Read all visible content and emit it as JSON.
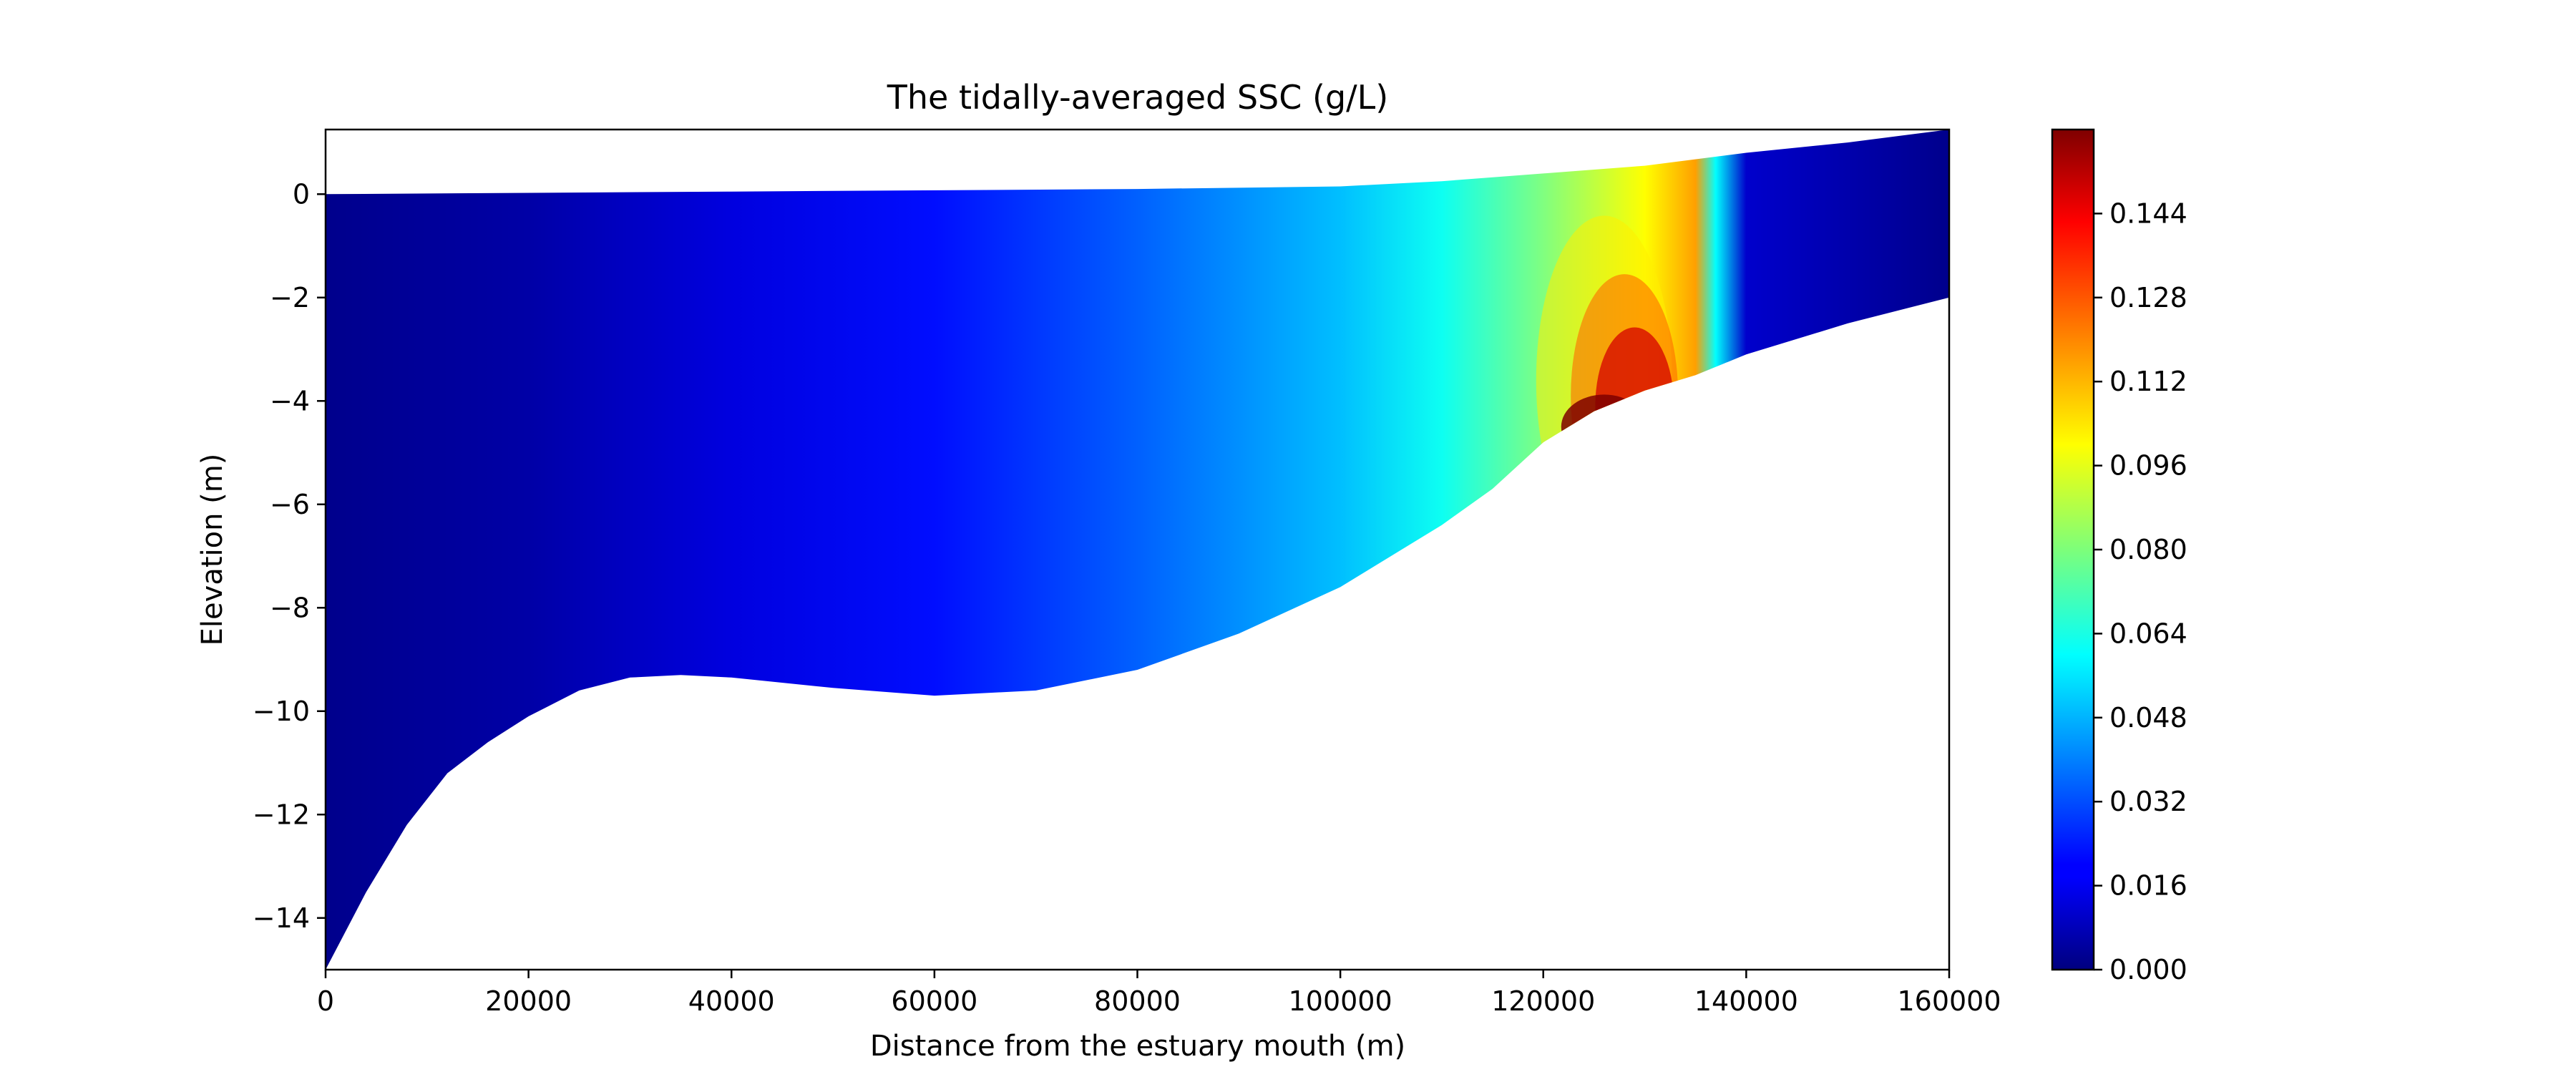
{
  "chart_data": {
    "type": "heatmap",
    "title": "The tidally-averaged SSC (g/L)",
    "xlabel": "Distance from the estuary mouth (m)",
    "ylabel": "Elevation (m)",
    "xlim": [
      0,
      160000
    ],
    "ylim": [
      -15,
      1.25
    ],
    "x_ticks": [
      0,
      20000,
      40000,
      60000,
      80000,
      100000,
      120000,
      140000,
      160000
    ],
    "x_tick_labels": [
      "0",
      "20000",
      "40000",
      "60000",
      "80000",
      "100000",
      "120000",
      "140000",
      "160000"
    ],
    "y_ticks": [
      0,
      -2,
      -4,
      -6,
      -8,
      -10,
      -12,
      -14
    ],
    "y_tick_labels": [
      "0",
      "−2",
      "−4",
      "−6",
      "−8",
      "−10",
      "−12",
      "−14"
    ],
    "grid": false,
    "colormap": "jet",
    "colorbar": {
      "min": 0.0,
      "max": 0.16,
      "ticks": [
        0.0,
        0.016,
        0.032,
        0.048,
        0.064,
        0.08,
        0.096,
        0.112,
        0.128,
        0.144
      ],
      "tick_labels": [
        "0.000",
        "0.016",
        "0.032",
        "0.048",
        "0.064",
        "0.080",
        "0.096",
        "0.112",
        "0.128",
        "0.144"
      ]
    },
    "water_surface": [
      [
        0,
        0
      ],
      [
        40000,
        0.05
      ],
      [
        80000,
        0.1
      ],
      [
        100000,
        0.15
      ],
      [
        110000,
        0.25
      ],
      [
        120000,
        0.4
      ],
      [
        130000,
        0.55
      ],
      [
        140000,
        0.8
      ],
      [
        150000,
        1.0
      ],
      [
        160000,
        1.25
      ]
    ],
    "bed": [
      [
        0,
        -15
      ],
      [
        4000,
        -13.5
      ],
      [
        8000,
        -12.2
      ],
      [
        12000,
        -11.2
      ],
      [
        16000,
        -10.6
      ],
      [
        20000,
        -10.1
      ],
      [
        25000,
        -9.6
      ],
      [
        30000,
        -9.35
      ],
      [
        35000,
        -9.3
      ],
      [
        40000,
        -9.35
      ],
      [
        50000,
        -9.55
      ],
      [
        60000,
        -9.7
      ],
      [
        70000,
        -9.6
      ],
      [
        80000,
        -9.2
      ],
      [
        90000,
        -8.5
      ],
      [
        100000,
        -7.6
      ],
      [
        110000,
        -6.4
      ],
      [
        115000,
        -5.7
      ],
      [
        120000,
        -4.8
      ],
      [
        125000,
        -4.2
      ],
      [
        130000,
        -3.8
      ],
      [
        135000,
        -3.5
      ],
      [
        140000,
        -3.1
      ],
      [
        150000,
        -2.5
      ],
      [
        160000,
        -2.0
      ]
    ],
    "field_profile": [
      [
        0,
        0.002
      ],
      [
        20000,
        0.006
      ],
      [
        40000,
        0.015
      ],
      [
        60000,
        0.022
      ],
      [
        80000,
        0.035
      ],
      [
        100000,
        0.05
      ],
      [
        110000,
        0.062
      ],
      [
        120000,
        0.08
      ],
      [
        125000,
        0.09
      ],
      [
        130000,
        0.1
      ],
      [
        135000,
        0.115
      ],
      [
        137000,
        0.06
      ],
      [
        140000,
        0.012
      ],
      [
        160000,
        0.002
      ]
    ]
  }
}
